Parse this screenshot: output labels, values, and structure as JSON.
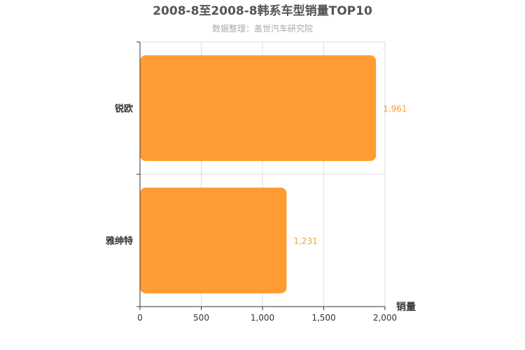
{
  "chart_data": {
    "type": "bar",
    "orientation": "horizontal",
    "title": "2008-8至2008-8韩系车型销量TOP10",
    "subtitle": "数据整理：盖世汽车研究院",
    "categories": [
      "锐欧",
      "雅绅特"
    ],
    "values": [
      1961,
      1231
    ],
    "value_labels": [
      "1,961",
      "1,231"
    ],
    "xlabel": "销量",
    "ylabel": "",
    "xlim": [
      0,
      2000
    ],
    "x_ticks": [
      0,
      500,
      1000,
      1500,
      2000
    ],
    "x_tick_labels": [
      "0",
      "500",
      "1,000",
      "1,500",
      "2,000"
    ],
    "grid": true,
    "bar_color": "#ff9c33",
    "label_color": "#f5a030"
  }
}
